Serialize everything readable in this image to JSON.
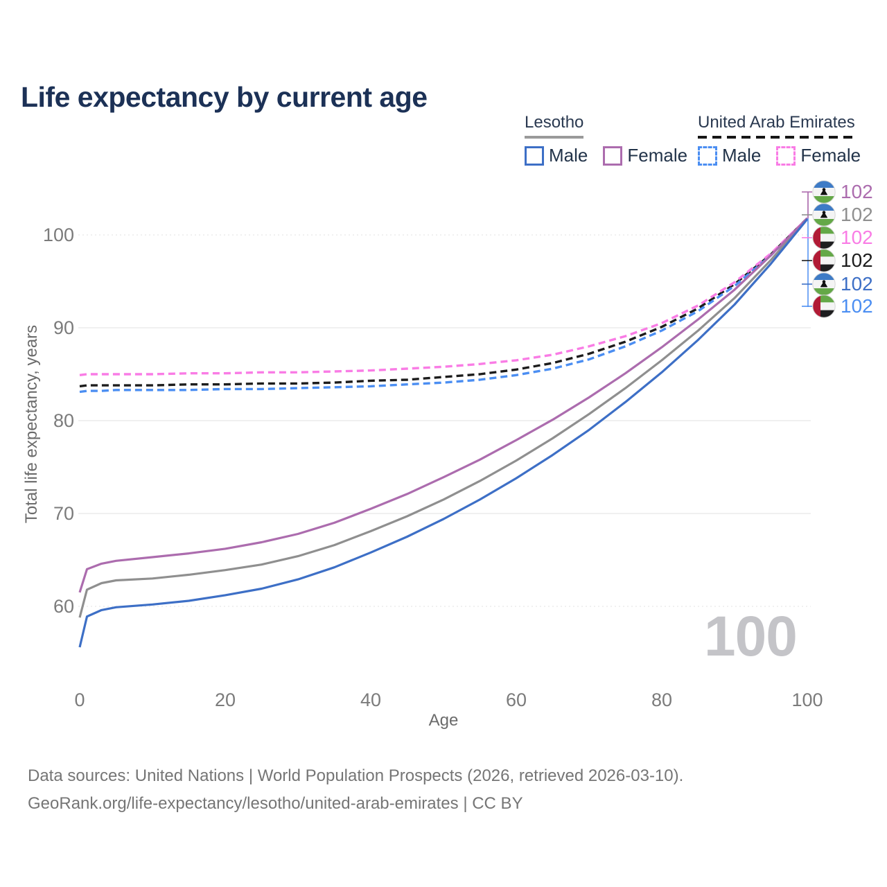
{
  "title": "Life expectancy by current age",
  "legend": {
    "groups": [
      {
        "title": "Lesotho",
        "line_style": "solid",
        "items": [
          {
            "label": "Male",
            "color": "#3d6fc6"
          },
          {
            "label": "Female",
            "color": "#ac6cae"
          }
        ]
      },
      {
        "title": "United Arab Emirates",
        "line_style": "dashed",
        "items": [
          {
            "label": "Male",
            "color": "#4b8ef2"
          },
          {
            "label": "Female",
            "color": "#f97ce5"
          }
        ]
      }
    ]
  },
  "chart_data": {
    "type": "line",
    "title": "Life expectancy by current age",
    "xlabel": "Age",
    "ylabel": "Total life expectancy, years",
    "x_ticks": [
      0,
      20,
      40,
      60,
      80,
      100
    ],
    "y_ticks": [
      60,
      70,
      80,
      90,
      100
    ],
    "xlim": [
      0,
      100
    ],
    "ylim": [
      55,
      104
    ],
    "grid": "horizontal",
    "legend_position": "top-right",
    "x": [
      0,
      1,
      3,
      5,
      10,
      15,
      20,
      25,
      30,
      35,
      40,
      45,
      50,
      55,
      60,
      65,
      70,
      75,
      80,
      85,
      90,
      95,
      100
    ],
    "series": [
      {
        "key": "uae-both",
        "name": "United Arab Emirates Both sexes",
        "country": "United Arab Emirates",
        "sex": "Both",
        "color": "#1c1c1c",
        "dash": true,
        "values": [
          83.7,
          83.8,
          83.8,
          83.8,
          83.8,
          83.9,
          83.9,
          84.0,
          84.0,
          84.1,
          84.3,
          84.4,
          84.7,
          85.0,
          85.5,
          86.2,
          87.2,
          88.5,
          90.1,
          92.1,
          94.7,
          97.9,
          101.8
        ]
      },
      {
        "key": "uae-female",
        "name": "United Arab Emirates Female",
        "country": "United Arab Emirates",
        "sex": "Female",
        "color": "#f97ce5",
        "dash": true,
        "values": [
          84.9,
          85.0,
          85.0,
          85.0,
          85.0,
          85.1,
          85.1,
          85.2,
          85.2,
          85.3,
          85.4,
          85.6,
          85.8,
          86.1,
          86.5,
          87.1,
          88.0,
          89.1,
          90.5,
          92.4,
          94.9,
          98.0,
          101.8
        ]
      },
      {
        "key": "uae-male",
        "name": "United Arab Emirates Male",
        "country": "United Arab Emirates",
        "sex": "Male",
        "color": "#4b8ef2",
        "dash": true,
        "values": [
          83.1,
          83.2,
          83.2,
          83.3,
          83.3,
          83.3,
          83.4,
          83.4,
          83.5,
          83.6,
          83.7,
          83.9,
          84.1,
          84.4,
          84.9,
          85.6,
          86.6,
          88.0,
          89.7,
          91.8,
          94.5,
          97.8,
          101.7
        ]
      },
      {
        "key": "lesotho-both",
        "name": "Lesotho Both sexes",
        "country": "Lesotho",
        "sex": "Both",
        "color": "#8f8f8f",
        "dash": false,
        "values": [
          58.8,
          61.8,
          62.5,
          62.8,
          63.0,
          63.4,
          63.9,
          64.5,
          65.4,
          66.6,
          68.1,
          69.7,
          71.5,
          73.5,
          75.7,
          78.1,
          80.7,
          83.5,
          86.5,
          89.7,
          93.2,
          97.3,
          101.8
        ]
      },
      {
        "key": "lesotho-female",
        "name": "Lesotho Female",
        "country": "Lesotho",
        "sex": "Female",
        "color": "#ac6cae",
        "dash": false,
        "values": [
          61.5,
          64.0,
          64.6,
          64.9,
          65.3,
          65.7,
          66.2,
          66.9,
          67.8,
          69.0,
          70.5,
          72.1,
          73.9,
          75.8,
          77.9,
          80.1,
          82.5,
          85.1,
          87.9,
          90.9,
          94.1,
          97.8,
          101.8
        ]
      },
      {
        "key": "lesotho-male",
        "name": "Lesotho Male",
        "country": "Lesotho",
        "sex": "Male",
        "color": "#3d6fc6",
        "dash": false,
        "values": [
          55.6,
          58.9,
          59.6,
          59.9,
          60.2,
          60.6,
          61.2,
          61.9,
          62.9,
          64.2,
          65.8,
          67.5,
          69.4,
          71.5,
          73.8,
          76.3,
          79.0,
          82.0,
          85.2,
          88.7,
          92.5,
          96.9,
          101.7
        ]
      }
    ],
    "end_annotations": {
      "age": 100,
      "rows": [
        {
          "series_key": "lesotho-female",
          "flag": "lesotho",
          "label": "102"
        },
        {
          "series_key": "lesotho-both",
          "flag": "lesotho",
          "label": "102"
        },
        {
          "series_key": "uae-female",
          "flag": "uae",
          "label": "102"
        },
        {
          "series_key": "uae-both",
          "flag": "uae",
          "label": "102"
        },
        {
          "series_key": "lesotho-male",
          "flag": "lesotho",
          "label": "102"
        },
        {
          "series_key": "uae-male",
          "flag": "uae",
          "label": "102"
        }
      ]
    }
  },
  "flags": {
    "lesotho": {
      "blue": "#3e7bc6",
      "white": "#f4f4f4",
      "green": "#64a847",
      "hat": "#111111"
    },
    "uae": {
      "red": "#b11a35",
      "green": "#64a847",
      "white": "#f4f4f4",
      "black": "#1d1d1f"
    }
  },
  "watermark": "100",
  "footer": {
    "line1": "Data sources: United Nations | World Population Prospects (2026, retrieved 2026-03-10).",
    "line2": "GeoRank.org/life-expectancy/lesotho/united-arab-emirates | CC BY"
  }
}
